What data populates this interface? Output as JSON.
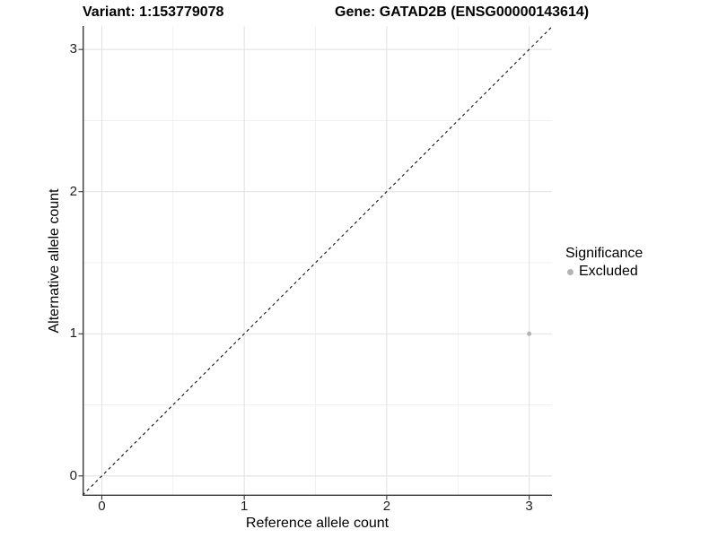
{
  "chart_data": {
    "type": "scatter",
    "titles": {
      "left": "Variant: 1:153779078",
      "right": "Gene: GATAD2B (ENSG00000143614)"
    },
    "x_axis": {
      "label": "Reference allele count",
      "ticks": [
        0,
        1,
        2,
        3
      ],
      "minor_ticks": [
        0.5,
        1.5,
        2.5
      ],
      "range": [
        -0.135,
        3.16
      ]
    },
    "y_axis": {
      "label": "Alternative allele count",
      "ticks": [
        0,
        1,
        2,
        3
      ],
      "minor_ticks": [
        0.5,
        1.5,
        2.5
      ],
      "range": [
        -0.14,
        3.165
      ]
    },
    "series": [
      {
        "name": "Excluded",
        "color": "#b3b3b3",
        "point_radius": 2.5,
        "points": [
          {
            "x": 3,
            "y": 1
          }
        ]
      }
    ],
    "reference_line": {
      "kind": "identity",
      "style": "dashed",
      "color": "#111111",
      "dash": "3.4 3.4"
    },
    "grid": {
      "major_color": "#e3e3e3",
      "minor_color": "#f1f1f1"
    },
    "axis_color": "#383838",
    "tick_color": "#333333",
    "tick_length": 4.5,
    "legend": {
      "title": "Significance",
      "position": "right",
      "items": [
        {
          "label": "Excluded",
          "color": "#b3b3b3"
        }
      ]
    }
  }
}
